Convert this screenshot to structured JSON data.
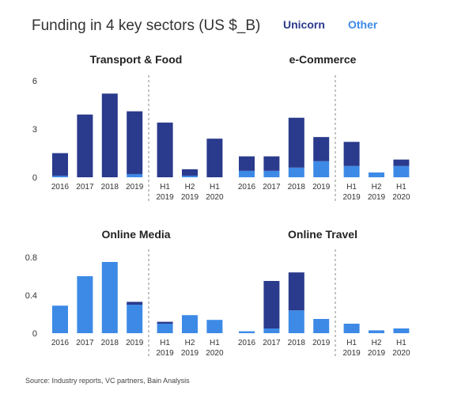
{
  "title": "Funding in 4 key sectors (US $_B)",
  "legend": {
    "unicorn": "Unicorn",
    "other": "Other"
  },
  "colors": {
    "unicorn": "#2a3a8c",
    "other": "#3d8ae6"
  },
  "source": "Source: Industry reports, VC partners, Bain Analysis",
  "chart_data": [
    {
      "type": "bar",
      "stacked": true,
      "title": "Transport & Food",
      "categories": [
        [
          "2016"
        ],
        [
          "2017"
        ],
        [
          "2018"
        ],
        [
          "2019"
        ],
        [
          "H1",
          "2019"
        ],
        [
          "H2",
          "2019"
        ],
        [
          "H1",
          "2020"
        ]
      ],
      "yticks": [
        "0",
        "3",
        "6"
      ],
      "ylim": [
        0,
        6
      ],
      "series": [
        {
          "name": "Other",
          "values": [
            0.1,
            0,
            0,
            0.2,
            0,
            0.1,
            0
          ]
        },
        {
          "name": "Unicorn",
          "values": [
            1.4,
            3.9,
            5.2,
            3.9,
            3.4,
            0.4,
            2.4
          ]
        }
      ]
    },
    {
      "type": "bar",
      "stacked": true,
      "title": "e-Commerce",
      "categories": [
        [
          "2016"
        ],
        [
          "2017"
        ],
        [
          "2018"
        ],
        [
          "2019"
        ],
        [
          "H1",
          "2019"
        ],
        [
          "H2",
          "2019"
        ],
        [
          "H1",
          "2020"
        ]
      ],
      "yticks": [],
      "ylim": [
        0,
        6
      ],
      "series": [
        {
          "name": "Other",
          "values": [
            0.4,
            0.4,
            0.6,
            1.0,
            0.7,
            0.3,
            0.7
          ]
        },
        {
          "name": "Unicorn",
          "values": [
            0.9,
            0.9,
            3.1,
            1.5,
            1.5,
            0,
            0.4
          ]
        }
      ]
    },
    {
      "type": "bar",
      "stacked": true,
      "title": "Online Media",
      "categories": [
        [
          "2016"
        ],
        [
          "2017"
        ],
        [
          "2018"
        ],
        [
          "2019"
        ],
        [
          "H1",
          "2019"
        ],
        [
          "H2",
          "2019"
        ],
        [
          "H1",
          "2020"
        ]
      ],
      "yticks": [
        "0",
        "0.4",
        "0.8"
      ],
      "ylim": [
        0,
        0.8
      ],
      "series": [
        {
          "name": "Other",
          "values": [
            0.29,
            0.6,
            0.75,
            0.3,
            0.1,
            0.19,
            0.14
          ]
        },
        {
          "name": "Unicorn",
          "values": [
            0,
            0,
            0,
            0.03,
            0.02,
            0,
            0
          ]
        }
      ]
    },
    {
      "type": "bar",
      "stacked": true,
      "title": "Online Travel",
      "categories": [
        [
          "2016"
        ],
        [
          "2017"
        ],
        [
          "2018"
        ],
        [
          "2019"
        ],
        [
          "H1",
          "2019"
        ],
        [
          "H2",
          "2019"
        ],
        [
          "H1",
          "2020"
        ]
      ],
      "yticks": [],
      "ylim": [
        0,
        0.8
      ],
      "series": [
        {
          "name": "Other",
          "values": [
            0.02,
            0.05,
            0.24,
            0.15,
            0.1,
            0.03,
            0.05
          ]
        },
        {
          "name": "Unicorn",
          "values": [
            0,
            0.5,
            0.4,
            0,
            0,
            0,
            0
          ]
        }
      ]
    }
  ]
}
